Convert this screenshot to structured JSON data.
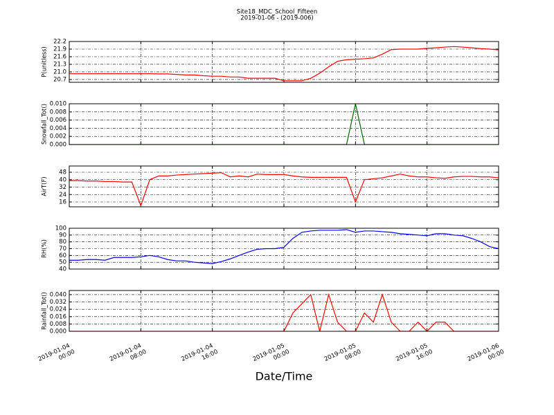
{
  "chart_data": {
    "type": "line",
    "title": "Site18_MDC_School_Fifteen",
    "subtitle": "2019-01-06 - (2019-006)",
    "xlabel": "Date/Time",
    "xlim": [
      "2019-01-04 00:00",
      "2019-01-06 00:00"
    ],
    "xticks": [
      "2019-01-04 00:00",
      "2019-01-04 08:00",
      "2019-01-04 16:00",
      "2019-01-05 00:00",
      "2019-01-05 08:00",
      "2019-01-05 16:00",
      "2019-01-06 00:00"
    ],
    "grid": true,
    "x": [
      "2019-01-04 00:00",
      "2019-01-04 01:00",
      "2019-01-04 02:00",
      "2019-01-04 03:00",
      "2019-01-04 04:00",
      "2019-01-04 05:00",
      "2019-01-04 06:00",
      "2019-01-04 07:00",
      "2019-01-04 08:00",
      "2019-01-04 09:00",
      "2019-01-04 10:00",
      "2019-01-04 11:00",
      "2019-01-04 12:00",
      "2019-01-04 13:00",
      "2019-01-04 14:00",
      "2019-01-04 15:00",
      "2019-01-04 16:00",
      "2019-01-04 17:00",
      "2019-01-04 18:00",
      "2019-01-04 19:00",
      "2019-01-04 20:00",
      "2019-01-04 21:00",
      "2019-01-04 22:00",
      "2019-01-04 23:00",
      "2019-01-05 00:00",
      "2019-01-05 01:00",
      "2019-01-05 02:00",
      "2019-01-05 03:00",
      "2019-01-05 04:00",
      "2019-01-05 05:00",
      "2019-01-05 06:00",
      "2019-01-05 07:00",
      "2019-01-05 08:00",
      "2019-01-05 09:00",
      "2019-01-05 10:00",
      "2019-01-05 11:00",
      "2019-01-05 12:00",
      "2019-01-05 13:00",
      "2019-01-05 14:00",
      "2019-01-05 15:00",
      "2019-01-05 16:00",
      "2019-01-05 17:00",
      "2019-01-05 18:00",
      "2019-01-05 19:00",
      "2019-01-05 20:00",
      "2019-01-05 21:00",
      "2019-01-05 22:00",
      "2019-01-05 23:00",
      "2019-01-06 00:00"
    ],
    "panels": [
      {
        "ylabel": "P(unitless)",
        "ylim": [
          20.59,
          22.2
        ],
        "yticks": [
          20.7,
          {
            "value": 21,
            "label": "21.0"
          },
          21.3,
          21.6,
          21.9,
          22.2
        ],
        "series": [
          {
            "color": "#ff0000",
            "values": [
              20.93,
              20.93,
              20.93,
              20.93,
              20.93,
              20.93,
              20.93,
              20.93,
              20.93,
              20.93,
              20.92,
              20.92,
              20.9,
              20.88,
              20.88,
              20.85,
              20.83,
              20.83,
              20.8,
              20.8,
              20.75,
              20.75,
              20.75,
              20.75,
              20.65,
              20.65,
              20.65,
              20.75,
              20.95,
              21.2,
              21.42,
              21.48,
              21.5,
              21.52,
              21.55,
              21.7,
              21.88,
              21.9,
              21.9,
              21.9,
              21.93,
              21.95,
              21.98,
              22.0,
              21.98,
              21.95,
              21.92,
              21.9,
              21.87
            ]
          }
        ]
      },
      {
        "ylabel": "Snowfall_Tot()",
        "ylim": [
          0,
          0.01
        ],
        "yticks": [
          {
            "value": 0,
            "label": "0.000"
          },
          {
            "value": 0.002,
            "label": "0.002"
          },
          {
            "value": 0.004,
            "label": "0.004"
          },
          {
            "value": 0.006,
            "label": "0.006"
          },
          {
            "value": 0.008,
            "label": "0.008"
          },
          {
            "value": 0.01,
            "label": "0.010"
          }
        ],
        "series": [
          {
            "color": "#006400",
            "values": [
              0,
              0,
              0,
              0,
              0,
              0,
              0,
              0,
              0,
              0,
              0,
              0,
              0,
              0,
              0,
              0,
              0,
              0,
              0,
              0,
              0,
              0,
              0,
              0,
              0,
              0,
              0,
              0,
              0,
              0,
              0,
              0,
              0.01,
              0,
              0,
              0,
              0,
              0,
              0,
              0,
              0,
              0,
              0,
              0,
              0,
              0,
              0,
              0,
              0
            ]
          }
        ]
      },
      {
        "ylabel": "AirT(F)",
        "ylim": [
          10.8,
          54.7
        ],
        "yticks": [
          16,
          24,
          32,
          40,
          48
        ],
        "series": [
          {
            "color": "#ff0000",
            "values": [
              39,
              39,
              38.5,
              38.5,
              38,
              38,
              37.5,
              37.5,
              12,
              40,
              44,
              44,
              45,
              45.5,
              46,
              46.5,
              47,
              47.5,
              43,
              44,
              43,
              46,
              45.5,
              45.5,
              45.5,
              44,
              43,
              42.5,
              42.5,
              42.5,
              42.5,
              42.5,
              16,
              40,
              41,
              42,
              44,
              46,
              44,
              43,
              43,
              42,
              41.5,
              43,
              43.5,
              43.5,
              43,
              43,
              42
            ]
          }
        ]
      },
      {
        "ylabel": "RH(%)",
        "ylim": [
          40,
          100
        ],
        "yticks": [
          40,
          50,
          60,
          70,
          80,
          90,
          100
        ],
        "series": [
          {
            "color": "#0000ff",
            "values": [
              53,
              53,
              54,
              54,
              53,
              57,
              57,
              57,
              58,
              60,
              58,
              54,
              52,
              52,
              50,
              49,
              48,
              51,
              55,
              60,
              65,
              69,
              70,
              70,
              72,
              85,
              94,
              96,
              97,
              97,
              97,
              98,
              94,
              96,
              96,
              95,
              94,
              92,
              91,
              90,
              89,
              92,
              92,
              90,
              89,
              85,
              80,
              73,
              70
            ]
          }
        ]
      },
      {
        "ylabel": "Rainfall_Tot()",
        "ylim": [
          0,
          0.0445
        ],
        "yticks": [
          {
            "value": 0,
            "label": "0.000"
          },
          {
            "value": 0.008,
            "label": "0.008"
          },
          {
            "value": 0.016,
            "label": "0.016"
          },
          {
            "value": 0.024,
            "label": "0.024"
          },
          {
            "value": 0.032,
            "label": "0.032"
          },
          {
            "value": 0.04,
            "label": "0.040"
          }
        ],
        "series": [
          {
            "color": "#ff0000",
            "values": [
              0,
              0,
              0,
              0,
              0,
              0,
              0,
              0,
              0,
              0,
              0,
              0,
              0,
              0,
              0,
              0,
              0,
              0,
              0,
              0,
              0,
              0,
              0,
              0,
              0,
              0.02,
              0.03,
              0.04,
              0,
              0.04,
              0.01,
              0,
              0,
              0.02,
              0.01,
              0.04,
              0.01,
              0,
              0,
              0.01,
              0,
              0.01,
              0.01,
              0,
              0,
              0,
              0,
              0,
              0
            ]
          }
        ]
      }
    ]
  }
}
